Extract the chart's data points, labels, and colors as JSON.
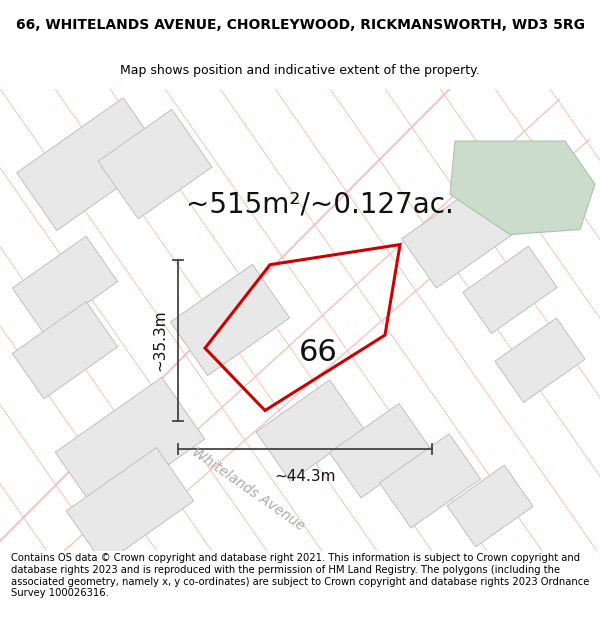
{
  "title": "66, WHITELANDS AVENUE, CHORLEYWOOD, RICKMANSWORTH, WD3 5RG",
  "subtitle": "Map shows position and indicative extent of the property.",
  "area_text": "~515m²/~0.127ac.",
  "label_66": "66",
  "dim_vertical": "~35.3m",
  "dim_horizontal": "~44.3m",
  "street_label": "Whitelands Avenue",
  "copyright": "Contains OS data © Crown copyright and database right 2021. This information is subject to Crown copyright and database rights 2023 and is reproduced with the permission of HM Land Registry. The polygons (including the associated geometry, namely x, y co-ordinates) are subject to Crown copyright and database rights 2023 Ordnance Survey 100026316.",
  "map_bg": "#f8f7f5",
  "parcel_face": "#e8e8e8",
  "parcel_edge": "#c0c0c0",
  "street_line_color": "#f5c0c0",
  "plot_color": "#cc0000",
  "green_color": "#ccdccc",
  "green_edge": "#a8c4a8",
  "dim_line_color": "#444444",
  "title_fontsize": 10,
  "subtitle_fontsize": 9,
  "area_fontsize": 20,
  "label_fontsize": 22,
  "copyright_fontsize": 7.2,
  "street_label_fontsize": 10,
  "dim_fontsize": 11
}
